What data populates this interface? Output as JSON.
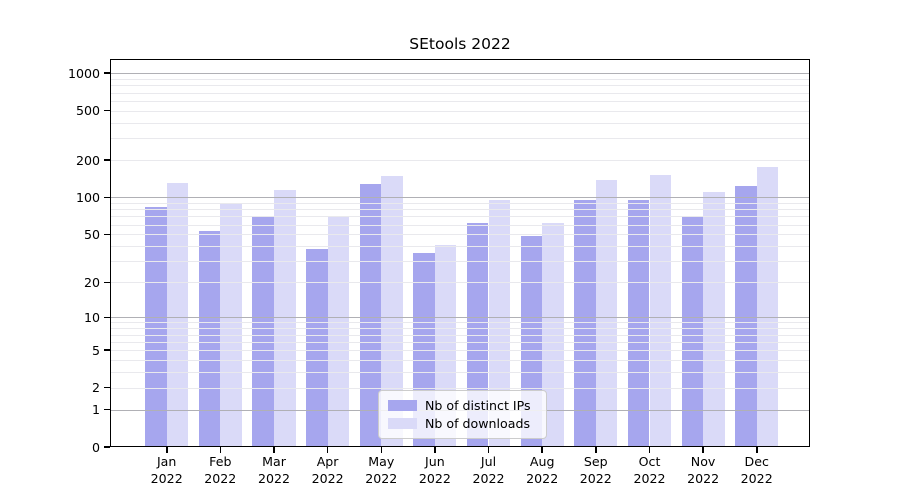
{
  "chart_data": {
    "type": "bar",
    "title": "SEtools 2022",
    "categories": [
      "Jan 2022",
      "Feb 2022",
      "Mar 2022",
      "Apr 2022",
      "May 2022",
      "Jun 2022",
      "Jul 2022",
      "Aug 2022",
      "Sep 2022",
      "Oct 2022",
      "Nov 2022",
      "Dec 2022"
    ],
    "x_tick_line1": [
      "Jan",
      "Feb",
      "Mar",
      "Apr",
      "May",
      "Jun",
      "Jul",
      "Aug",
      "Sep",
      "Oct",
      "Nov",
      "Dec"
    ],
    "x_tick_line2": "2022",
    "series": [
      {
        "name": "Nb of distinct IPs",
        "key": "distinct-ips",
        "color": "#a6a6ee",
        "values": [
          83,
          53,
          70,
          38,
          128,
          35,
          62,
          48,
          95,
          95,
          69,
          123
        ]
      },
      {
        "name": "Nb of downloads",
        "key": "downloads",
        "color": "#dadaf8",
        "values": [
          130,
          88,
          114,
          70,
          150,
          41,
          96,
          62,
          137,
          151,
          111,
          175
        ]
      }
    ],
    "yscale": "log1p",
    "ylabel": "",
    "xlabel": "",
    "y_tick_values": [
      0,
      1,
      2,
      5,
      10,
      20,
      50,
      100,
      200,
      500,
      1000
    ],
    "y_tick_labels": [
      "0",
      "1",
      "2",
      "5",
      "10",
      "20",
      "50",
      "100",
      "200",
      "500",
      "1000"
    ],
    "ylim": [
      0,
      1300
    ],
    "grid": "both",
    "legend_position": "lower center"
  },
  "style_colors": {
    "major_grid": "#b0b0b5",
    "minor_grid": "#e9e9ed",
    "axis": "#000000",
    "legend_border": "#cccccc",
    "background": "#ffffff"
  }
}
